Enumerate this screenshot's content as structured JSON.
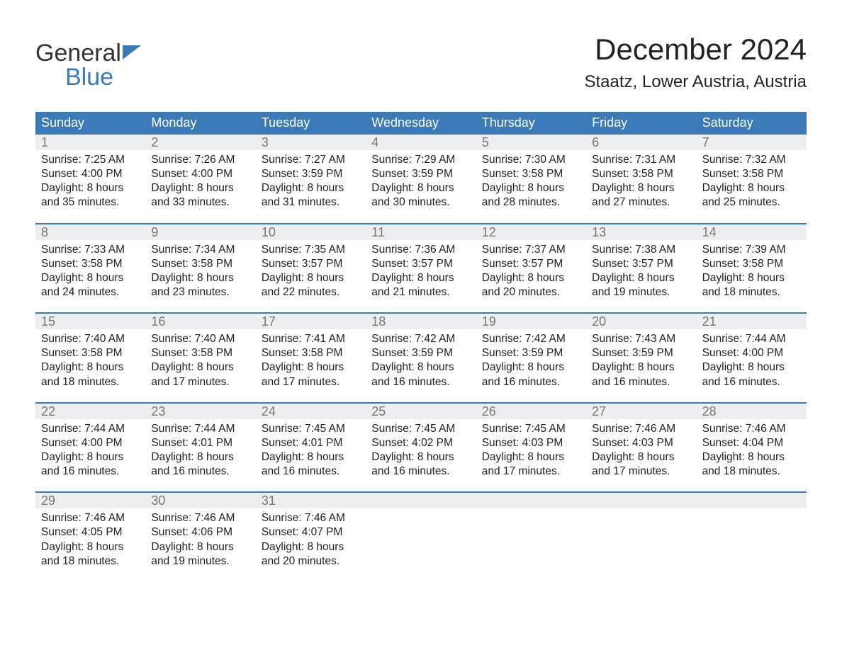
{
  "logo": {
    "line1": "General",
    "line2": "Blue"
  },
  "title": "December 2024",
  "location": "Staatz, Lower Austria, Austria",
  "colors": {
    "header_bg": "#3a7ab8",
    "header_text": "#ffffff",
    "daynum_bg": "#eceeef",
    "daynum_text": "#777777",
    "body_text": "#222222",
    "rule": "#3a7ab8",
    "logo_blue": "#3a7ab8"
  },
  "typography": {
    "title_fontsize": 42,
    "location_fontsize": 24,
    "dayheader_fontsize": 18,
    "daynum_fontsize": 18,
    "info_fontsize": 15.5,
    "font_family": "Arial"
  },
  "layout": {
    "columns": 7,
    "rows": 5,
    "week_start": "Sunday"
  },
  "day_names": [
    "Sunday",
    "Monday",
    "Tuesday",
    "Wednesday",
    "Thursday",
    "Friday",
    "Saturday"
  ],
  "days": [
    {
      "n": "1",
      "sr": "Sunrise: 7:25 AM",
      "ss": "Sunset: 4:00 PM",
      "d1": "Daylight: 8 hours",
      "d2": "and 35 minutes."
    },
    {
      "n": "2",
      "sr": "Sunrise: 7:26 AM",
      "ss": "Sunset: 4:00 PM",
      "d1": "Daylight: 8 hours",
      "d2": "and 33 minutes."
    },
    {
      "n": "3",
      "sr": "Sunrise: 7:27 AM",
      "ss": "Sunset: 3:59 PM",
      "d1": "Daylight: 8 hours",
      "d2": "and 31 minutes."
    },
    {
      "n": "4",
      "sr": "Sunrise: 7:29 AM",
      "ss": "Sunset: 3:59 PM",
      "d1": "Daylight: 8 hours",
      "d2": "and 30 minutes."
    },
    {
      "n": "5",
      "sr": "Sunrise: 7:30 AM",
      "ss": "Sunset: 3:58 PM",
      "d1": "Daylight: 8 hours",
      "d2": "and 28 minutes."
    },
    {
      "n": "6",
      "sr": "Sunrise: 7:31 AM",
      "ss": "Sunset: 3:58 PM",
      "d1": "Daylight: 8 hours",
      "d2": "and 27 minutes."
    },
    {
      "n": "7",
      "sr": "Sunrise: 7:32 AM",
      "ss": "Sunset: 3:58 PM",
      "d1": "Daylight: 8 hours",
      "d2": "and 25 minutes."
    },
    {
      "n": "8",
      "sr": "Sunrise: 7:33 AM",
      "ss": "Sunset: 3:58 PM",
      "d1": "Daylight: 8 hours",
      "d2": "and 24 minutes."
    },
    {
      "n": "9",
      "sr": "Sunrise: 7:34 AM",
      "ss": "Sunset: 3:58 PM",
      "d1": "Daylight: 8 hours",
      "d2": "and 23 minutes."
    },
    {
      "n": "10",
      "sr": "Sunrise: 7:35 AM",
      "ss": "Sunset: 3:57 PM",
      "d1": "Daylight: 8 hours",
      "d2": "and 22 minutes."
    },
    {
      "n": "11",
      "sr": "Sunrise: 7:36 AM",
      "ss": "Sunset: 3:57 PM",
      "d1": "Daylight: 8 hours",
      "d2": "and 21 minutes."
    },
    {
      "n": "12",
      "sr": "Sunrise: 7:37 AM",
      "ss": "Sunset: 3:57 PM",
      "d1": "Daylight: 8 hours",
      "d2": "and 20 minutes."
    },
    {
      "n": "13",
      "sr": "Sunrise: 7:38 AM",
      "ss": "Sunset: 3:57 PM",
      "d1": "Daylight: 8 hours",
      "d2": "and 19 minutes."
    },
    {
      "n": "14",
      "sr": "Sunrise: 7:39 AM",
      "ss": "Sunset: 3:58 PM",
      "d1": "Daylight: 8 hours",
      "d2": "and 18 minutes."
    },
    {
      "n": "15",
      "sr": "Sunrise: 7:40 AM",
      "ss": "Sunset: 3:58 PM",
      "d1": "Daylight: 8 hours",
      "d2": "and 18 minutes."
    },
    {
      "n": "16",
      "sr": "Sunrise: 7:40 AM",
      "ss": "Sunset: 3:58 PM",
      "d1": "Daylight: 8 hours",
      "d2": "and 17 minutes."
    },
    {
      "n": "17",
      "sr": "Sunrise: 7:41 AM",
      "ss": "Sunset: 3:58 PM",
      "d1": "Daylight: 8 hours",
      "d2": "and 17 minutes."
    },
    {
      "n": "18",
      "sr": "Sunrise: 7:42 AM",
      "ss": "Sunset: 3:59 PM",
      "d1": "Daylight: 8 hours",
      "d2": "and 16 minutes."
    },
    {
      "n": "19",
      "sr": "Sunrise: 7:42 AM",
      "ss": "Sunset: 3:59 PM",
      "d1": "Daylight: 8 hours",
      "d2": "and 16 minutes."
    },
    {
      "n": "20",
      "sr": "Sunrise: 7:43 AM",
      "ss": "Sunset: 3:59 PM",
      "d1": "Daylight: 8 hours",
      "d2": "and 16 minutes."
    },
    {
      "n": "21",
      "sr": "Sunrise: 7:44 AM",
      "ss": "Sunset: 4:00 PM",
      "d1": "Daylight: 8 hours",
      "d2": "and 16 minutes."
    },
    {
      "n": "22",
      "sr": "Sunrise: 7:44 AM",
      "ss": "Sunset: 4:00 PM",
      "d1": "Daylight: 8 hours",
      "d2": "and 16 minutes."
    },
    {
      "n": "23",
      "sr": "Sunrise: 7:44 AM",
      "ss": "Sunset: 4:01 PM",
      "d1": "Daylight: 8 hours",
      "d2": "and 16 minutes."
    },
    {
      "n": "24",
      "sr": "Sunrise: 7:45 AM",
      "ss": "Sunset: 4:01 PM",
      "d1": "Daylight: 8 hours",
      "d2": "and 16 minutes."
    },
    {
      "n": "25",
      "sr": "Sunrise: 7:45 AM",
      "ss": "Sunset: 4:02 PM",
      "d1": "Daylight: 8 hours",
      "d2": "and 16 minutes."
    },
    {
      "n": "26",
      "sr": "Sunrise: 7:45 AM",
      "ss": "Sunset: 4:03 PM",
      "d1": "Daylight: 8 hours",
      "d2": "and 17 minutes."
    },
    {
      "n": "27",
      "sr": "Sunrise: 7:46 AM",
      "ss": "Sunset: 4:03 PM",
      "d1": "Daylight: 8 hours",
      "d2": "and 17 minutes."
    },
    {
      "n": "28",
      "sr": "Sunrise: 7:46 AM",
      "ss": "Sunset: 4:04 PM",
      "d1": "Daylight: 8 hours",
      "d2": "and 18 minutes."
    },
    {
      "n": "29",
      "sr": "Sunrise: 7:46 AM",
      "ss": "Sunset: 4:05 PM",
      "d1": "Daylight: 8 hours",
      "d2": "and 18 minutes."
    },
    {
      "n": "30",
      "sr": "Sunrise: 7:46 AM",
      "ss": "Sunset: 4:06 PM",
      "d1": "Daylight: 8 hours",
      "d2": "and 19 minutes."
    },
    {
      "n": "31",
      "sr": "Sunrise: 7:46 AM",
      "ss": "Sunset: 4:07 PM",
      "d1": "Daylight: 8 hours",
      "d2": "and 20 minutes."
    }
  ]
}
